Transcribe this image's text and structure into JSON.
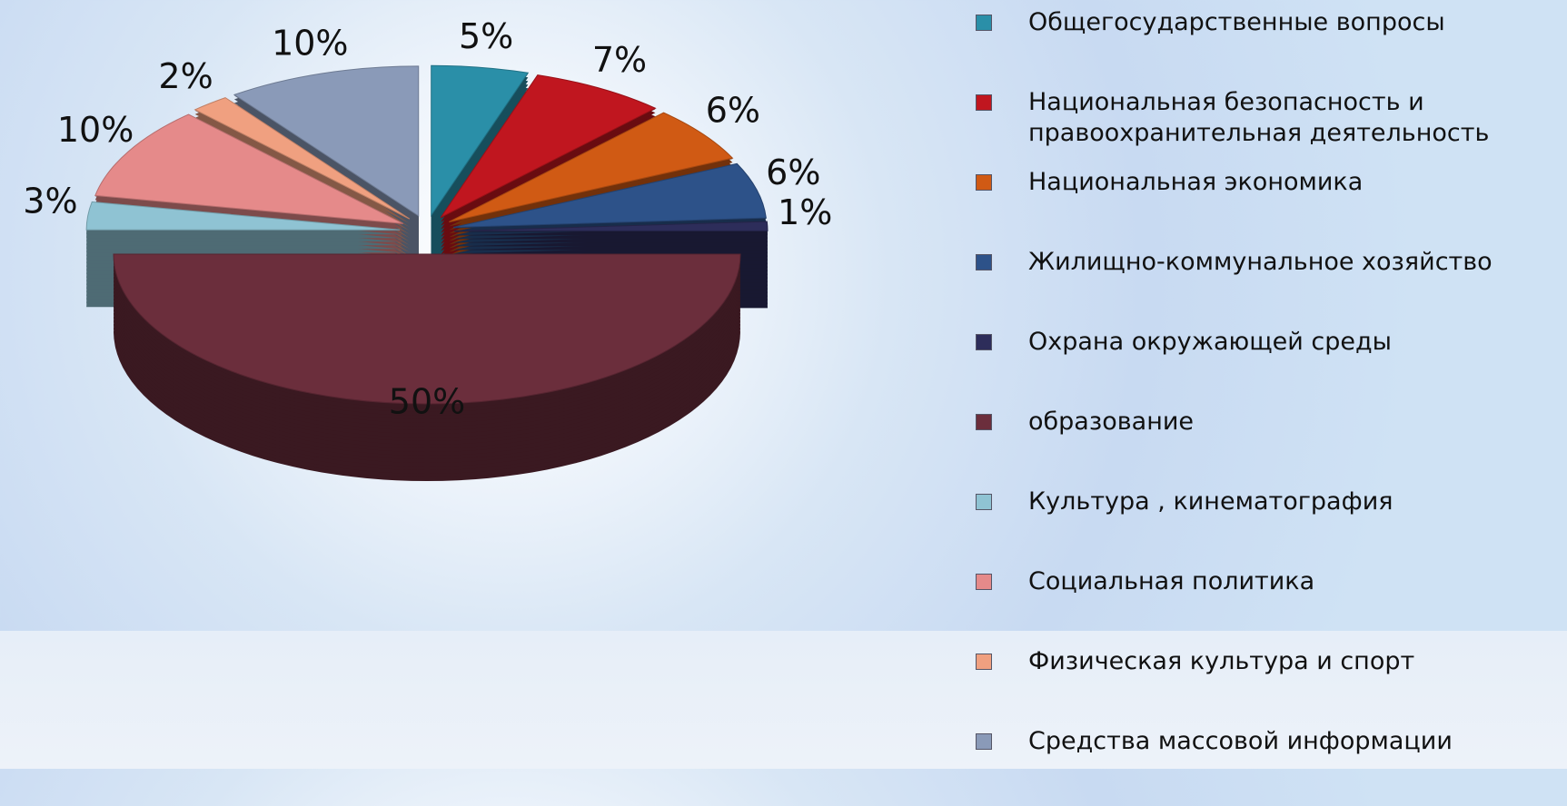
{
  "chart_data": {
    "type": "pie",
    "categories": [
      "Общегосударственные вопросы",
      "Национальная безопасность и правоохранительная деятельность",
      "Национальная экономика",
      "Жилищно-коммунальное хозяйство",
      "Охрана окружающей среды",
      "образование",
      "Культура , кинематография",
      "Социальная политика",
      "Физическая культура и спорт",
      "Средства массовой информации"
    ],
    "values": [
      5,
      7,
      6,
      6,
      1,
      50,
      3,
      10,
      2,
      10
    ],
    "value_labels": [
      "5%",
      "7%",
      "6%",
      "6%",
      "1%",
      "50%",
      "3%",
      "10%",
      "2%",
      "10%"
    ],
    "colors": [
      "#2a8fa8",
      "#c0161f",
      "#d05a14",
      "#2d5289",
      "#2d2d5a",
      "#6b2e3c",
      "#8fc3d3",
      "#e58a8a",
      "#f0a080",
      "#8a9ab8"
    ],
    "legend": "right"
  }
}
